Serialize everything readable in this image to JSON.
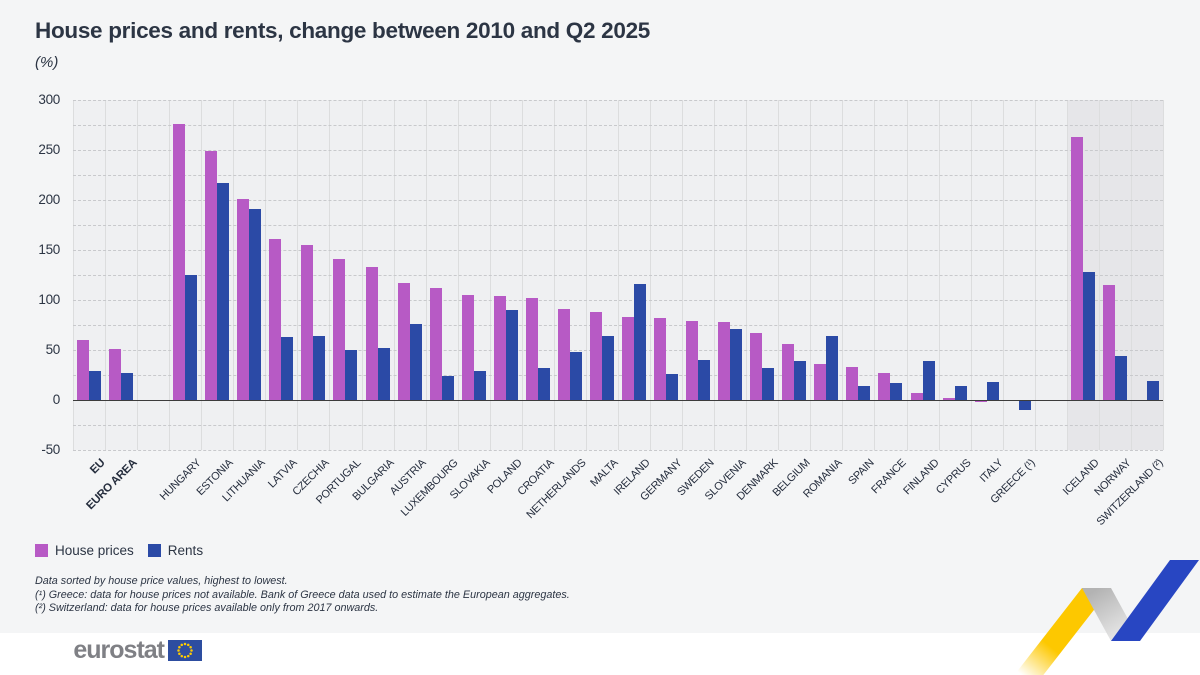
{
  "title": "House prices and rents, change between 2010 and Q2 2025",
  "subtitle": "(%)",
  "legend": {
    "house_label": "House prices",
    "rent_label": "Rents",
    "house_color": "#b75ac5",
    "rent_color": "#2b4aa6"
  },
  "footnotes": [
    "Data sorted by house price values, highest to lowest.",
    "(¹) Greece: data for house prices not available. Bank of Greece data used to estimate the European aggregates.",
    "(²) Switzerland: data for house prices available only from 2017 onwards."
  ],
  "logo_text": "eurostat",
  "chart_data": {
    "type": "bar",
    "title": "House prices and rents, change between 2010 and Q2 2025",
    "ylabel": "(%)",
    "ylim": [
      -50,
      300
    ],
    "ytick_step": 50,
    "grid_minor_step": 25,
    "legend_position": "bottom-left",
    "series_names": [
      "House prices",
      "Rents"
    ],
    "highlighted_region": "EFTA countries (Iceland, Norway, Switzerland) shown on shaded background",
    "countries": [
      {
        "label": "EU",
        "house": 60,
        "rent": 29,
        "bold": true
      },
      {
        "label": "EURO AREA",
        "house": 51,
        "rent": 27,
        "bold": true
      },
      {
        "label": "HUNGARY",
        "house": 276,
        "rent": 125,
        "gap_before": true
      },
      {
        "label": "ESTONIA",
        "house": 249,
        "rent": 217
      },
      {
        "label": "LITHUANIA",
        "house": 201,
        "rent": 191
      },
      {
        "label": "LATVIA",
        "house": 161,
        "rent": 63
      },
      {
        "label": "CZECHIA",
        "house": 155,
        "rent": 64
      },
      {
        "label": "PORTUGAL",
        "house": 141,
        "rent": 50
      },
      {
        "label": "BULGARIA",
        "house": 133,
        "rent": 52
      },
      {
        "label": "AUSTRIA",
        "house": 117,
        "rent": 76
      },
      {
        "label": "LUXEMBOURG",
        "house": 112,
        "rent": 24
      },
      {
        "label": "SLOVAKIA",
        "house": 105,
        "rent": 29
      },
      {
        "label": "POLAND",
        "house": 104,
        "rent": 90
      },
      {
        "label": "CROATIA",
        "house": 102,
        "rent": 32
      },
      {
        "label": "NETHERLANDS",
        "house": 91,
        "rent": 48
      },
      {
        "label": "MALTA",
        "house": 88,
        "rent": 64
      },
      {
        "label": "IRELAND",
        "house": 83,
        "rent": 116
      },
      {
        "label": "GERMANY",
        "house": 82,
        "rent": 26
      },
      {
        "label": "SWEDEN",
        "house": 79,
        "rent": 40
      },
      {
        "label": "SLOVENIA",
        "house": 78,
        "rent": 71
      },
      {
        "label": "DENMARK",
        "house": 67,
        "rent": 32
      },
      {
        "label": "BELGIUM",
        "house": 56,
        "rent": 39
      },
      {
        "label": "ROMANIA",
        "house": 36,
        "rent": 64
      },
      {
        "label": "SPAIN",
        "house": 33,
        "rent": 14
      },
      {
        "label": "FRANCE",
        "house": 27,
        "rent": 17
      },
      {
        "label": "FINLAND",
        "house": 7,
        "rent": 39
      },
      {
        "label": "CYPRUS",
        "house": 2,
        "rent": 14
      },
      {
        "label": "ITALY",
        "house": -1,
        "rent": 18
      },
      {
        "label": "GREECE (¹)",
        "house": null,
        "rent": -9
      },
      {
        "label": "ICELAND",
        "house": 263,
        "rent": 128,
        "gap_before": true,
        "efta": true
      },
      {
        "label": "NORWAY",
        "house": 115,
        "rent": 44,
        "efta": true
      },
      {
        "label": "SWITZERLAND (²)",
        "house": null,
        "rent": 19,
        "efta": true
      }
    ]
  }
}
